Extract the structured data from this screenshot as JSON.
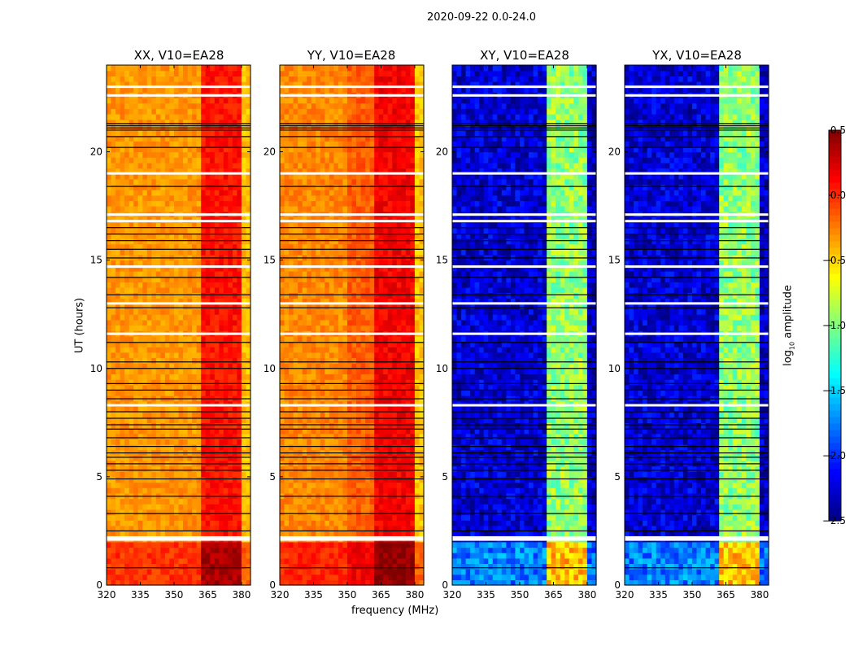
{
  "chart_data": {
    "type": "heatmap",
    "title": "2020-09-22 0.0-24.0",
    "xlabel": "frequency (MHz)",
    "ylabel": "UT (hours)",
    "xlim": [
      320,
      384
    ],
    "ylim": [
      0,
      24
    ],
    "xticks": [
      "320",
      "335",
      "350",
      "365",
      "380"
    ],
    "xtick_values": [
      320,
      335,
      350,
      365,
      380
    ],
    "yticks": [
      "0",
      "5",
      "10",
      "15",
      "20"
    ],
    "ytick_values": [
      0,
      5,
      10,
      15,
      20
    ],
    "colorbar": {
      "label_main": "log",
      "label_sub": "10",
      "label_rest": " amplitude",
      "range": [
        -2.5,
        0.5
      ],
      "colormap": "jet",
      "ticks": [
        "0.5",
        "0.0",
        "−0.5",
        "−1.0",
        "−1.5",
        "−2.0",
        "−2.5"
      ],
      "tick_values": [
        0.5,
        0.0,
        -0.5,
        -1.0,
        -1.5,
        -2.0,
        -2.5
      ]
    },
    "panels": [
      {
        "title": "XX, V10=EA28",
        "bands": [
          {
            "from": 320,
            "to": 362,
            "level": -0.32
          },
          {
            "from": 362,
            "to": 380,
            "level": 0.08
          },
          {
            "from": 380,
            "to": 384,
            "level": -0.45
          }
        ],
        "early_offset": 0.3
      },
      {
        "title": "YY, V10=EA28",
        "bands": [
          {
            "from": 320,
            "to": 350,
            "level": -0.28
          },
          {
            "from": 350,
            "to": 362,
            "level": -0.15
          },
          {
            "from": 362,
            "to": 380,
            "level": 0.15
          },
          {
            "from": 380,
            "to": 384,
            "level": -0.45
          }
        ],
        "early_offset": 0.3
      },
      {
        "title": "XY, V10=EA28",
        "bands": [
          {
            "from": 320,
            "to": 362,
            "level": -2.25
          },
          {
            "from": 362,
            "to": 380,
            "level": -0.95
          },
          {
            "from": 380,
            "to": 384,
            "level": -2.3
          }
        ],
        "early_offset": 0.5
      },
      {
        "title": "YX, V10=EA28",
        "bands": [
          {
            "from": 320,
            "to": 362,
            "level": -2.25
          },
          {
            "from": 362,
            "to": 380,
            "level": -0.95
          },
          {
            "from": 380,
            "to": 384,
            "level": -2.3
          }
        ],
        "early_offset": 0.5
      }
    ],
    "early_period_hours": [
      0,
      2.1
    ],
    "flagged_blank_hours": [
      2.1,
      2.2,
      8.3,
      11.6,
      13.0,
      14.7,
      16.8,
      17.1,
      19.0,
      22.6,
      23.0
    ],
    "flagged_dark_hours": [
      0.8,
      2.5,
      3.3,
      4.1,
      4.9,
      5.3,
      5.6,
      5.9,
      6.1,
      6.4,
      6.8,
      7.2,
      7.4,
      7.7,
      8.0,
      8.6,
      9.0,
      9.3,
      10.0,
      10.3,
      11.2,
      12.8,
      13.4,
      14.2,
      15.1,
      15.5,
      15.9,
      16.2,
      16.5,
      18.4,
      20.2,
      20.7,
      21.0,
      21.1,
      21.2,
      21.3
    ]
  }
}
